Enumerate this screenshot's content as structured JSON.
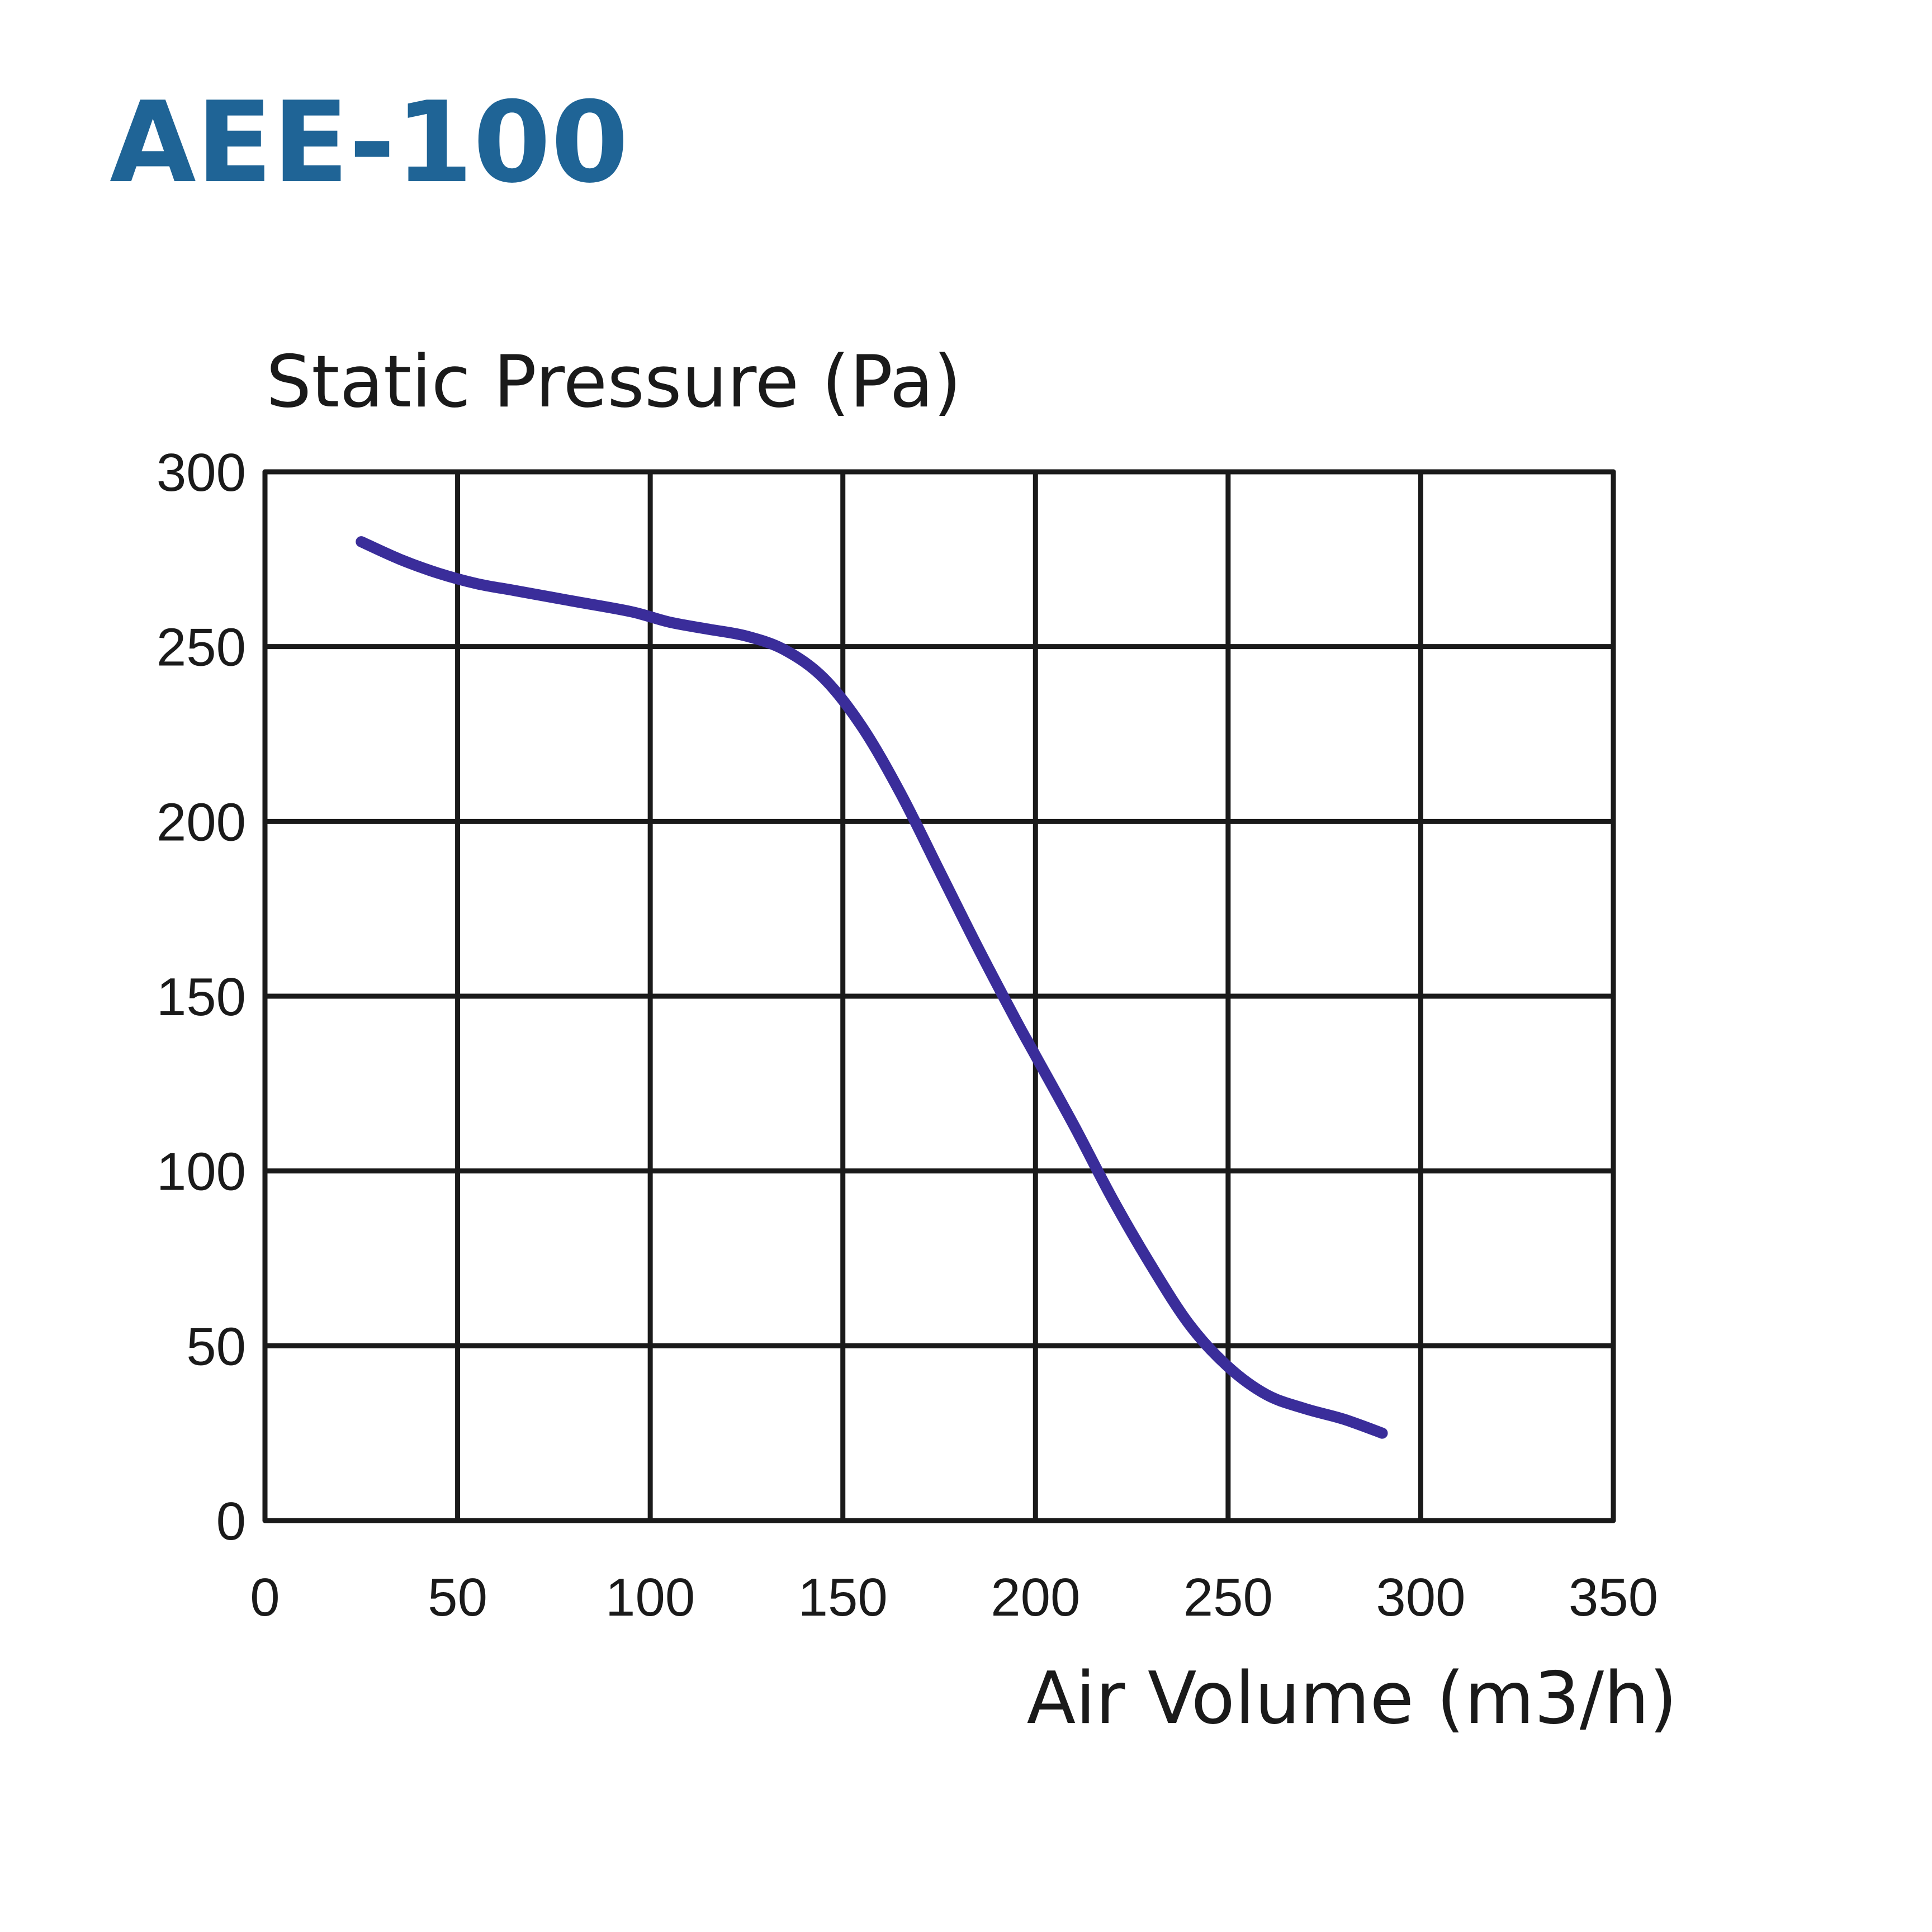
{
  "colors": {
    "title": "#1f6496",
    "curve": "#3a2d9a",
    "grid": "#1a1a1a",
    "background": "#ffffff"
  },
  "chart_data": {
    "type": "line",
    "title": "AEE-100",
    "xlabel": "Air Volume (m3/h)",
    "ylabel": "Static Pressure (Pa)",
    "xlim": [
      0,
      350
    ],
    "ylim": [
      0,
      300
    ],
    "x_ticks": [
      "0",
      "50",
      "100",
      "150",
      "200",
      "250",
      "300",
      "350"
    ],
    "y_ticks": [
      "0",
      "50",
      "100",
      "150",
      "200",
      "250",
      "300"
    ],
    "grid": true,
    "series": [
      {
        "x": [
          25,
          35,
          45,
          55,
          65,
          80,
          95,
          105,
          115,
          125,
          135,
          145,
          155,
          165,
          175,
          185,
          195,
          200,
          210,
          220,
          230,
          240,
          250,
          260,
          270,
          280,
          290
        ],
        "values": [
          280,
          275,
          271,
          268,
          266,
          263,
          260,
          257,
          255,
          253,
          249,
          241,
          227,
          208,
          186,
          164,
          143,
          133,
          113,
          92,
          73,
          56,
          44,
          36,
          32,
          29,
          25
        ]
      }
    ]
  }
}
